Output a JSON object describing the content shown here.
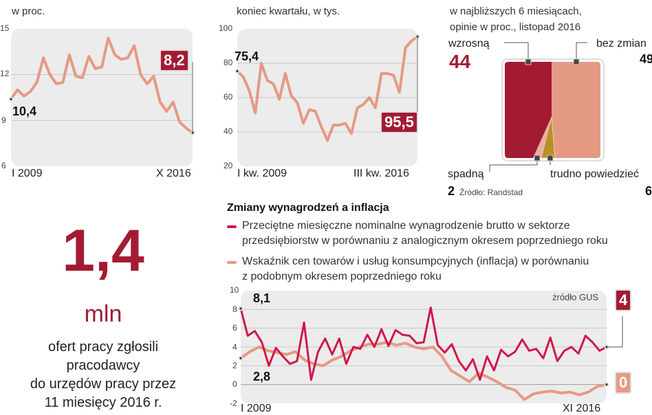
{
  "colors": {
    "dark_red": "#a31b33",
    "crimson": "#d0174a",
    "salmon": "#e59a84",
    "ochre": "#b8902a",
    "panel": "#ececec"
  },
  "unemployment": {
    "subtitle": "w proc.",
    "badge_end": "8,2",
    "label_start": "10,4"
  },
  "vacancies": {
    "subtitle": "koniec kwartału, w tys.",
    "badge_end": "95,5",
    "label_start": "75,4"
  },
  "wage_expectations": {
    "subtitle_lines": [
      "w najbliższych 6 miesiącach,",
      "opinie w proc., listopad 2016"
    ],
    "source": "Źródło: Randstad"
  },
  "offers": {
    "value": "1,4",
    "unit": "mln",
    "text_lines": [
      "ofert pracy zgłosili",
      "pracodawcy",
      "do urzędów pracy przez",
      "11 miesięcy 2016 r."
    ]
  },
  "wages_inflation": {
    "title": "Zmiany wynagrodzeń a inflacja",
    "legend": [
      "Przeciętne miesięczne  nominalne  wynagrodzenie brutto w sektorze przedsiębiorstw w porównaniu z analogicznym okresem poprzedniego  roku",
      "Wskaźnik cen towarów i usług konsumpcyjnych (inflacja) w porównaniu z podobnym okresem poprzedniego roku"
    ],
    "legend_lines": [
      [
        "Przeciętne miesięczne  nominalne  wynagrodzenie brutto w sektorze",
        "przedsiębiorstw w porównaniu z analogicznym okresem poprzedniego  roku"
      ],
      [
        "Wskaźnik cen towarów i usług konsumpcyjnych (inflacja) w porównaniu",
        "z podobnym okresem poprzedniego roku"
      ]
    ],
    "source": "źródło GUS",
    "label_wage_start": "8,1",
    "label_infl_start": "2,8",
    "badge_wage_end": "4",
    "badge_infl_end": "0"
  },
  "chart_data": [
    {
      "type": "line",
      "ylim": [
        6,
        15
      ],
      "yticks": [
        "15",
        "12",
        "9",
        "6"
      ],
      "xticks": [
        "I 2009",
        "X 2016"
      ],
      "grid": true,
      "values": [
        10.4,
        11.0,
        10.6,
        10.9,
        11.5,
        13.1,
        12.0,
        11.4,
        11.5,
        13.3,
        11.9,
        11.8,
        13.2,
        12.4,
        12.5,
        14.4,
        13.3,
        13.0,
        13.1,
        13.9,
        12.0,
        11.4,
        11.9,
        10.2,
        9.6,
        10.2,
        8.9,
        8.5,
        8.2
      ]
    },
    {
      "type": "line",
      "ylim": [
        20,
        100
      ],
      "yticks": [
        "100",
        "80",
        "60",
        "40",
        "20"
      ],
      "xticks": [
        "I kw. 2009",
        "III kw. 2016"
      ],
      "grid": true,
      "values": [
        75.4,
        72,
        64,
        51,
        80,
        70,
        68,
        59,
        74,
        61,
        57,
        45,
        53,
        52,
        43,
        35,
        44,
        44,
        45,
        39,
        54,
        56,
        60,
        54,
        74,
        74,
        73,
        63,
        89,
        93,
        95.5
      ]
    },
    {
      "type": "pie",
      "slices": [
        {
          "name": "wzrosną",
          "value": 44
        },
        {
          "name": "bez zmian",
          "value": 49
        },
        {
          "name": "trudno powiedzieć",
          "value": 6
        },
        {
          "name": "spadną",
          "value": 2
        }
      ]
    },
    {
      "type": "line",
      "title": "Zmiany wynagrodzeń a inflacja",
      "ylim": [
        -2,
        10
      ],
      "yticks": [
        "10",
        "8",
        "6",
        "4",
        "2",
        "0",
        "-2"
      ],
      "xticks": [
        "I 2009",
        "XI 2016"
      ],
      "grid": true,
      "series": [
        {
          "name": "Przeciętne miesięczne nominalne wynagrodzenie brutto",
          "values": [
            8.1,
            5.2,
            5.7,
            4.5,
            2.0,
            3.9,
            3.0,
            2.2,
            2.5,
            6.6,
            0.5,
            3.5,
            4.9,
            3.2,
            4.9,
            2.2,
            4.0,
            3.8,
            5.3,
            4.0,
            5.9,
            4.1,
            5.8,
            5.3,
            5.2,
            4.4,
            4.5,
            8.2,
            4.2,
            3.4,
            4.3,
            2.5,
            1.5,
            2.7,
            0.5,
            3.0,
            1.5,
            3.7,
            3.0,
            3.5,
            4.8,
            3.6,
            3.8,
            2.8,
            5.0,
            2.5,
            3.6,
            4.0,
            3.3,
            5.2,
            4.5,
            3.6,
            4.0
          ]
        },
        {
          "name": "Wskaźnik cen towarów i usług konsumpcyjnych (inflacja)",
          "values": [
            2.8,
            3.5,
            4.0,
            3.6,
            3.4,
            3.2,
            3.5,
            2.6,
            2.2,
            2.0,
            2.6,
            3.0,
            3.6,
            4.0,
            4.3,
            4.3,
            4.5,
            4.2,
            4.4,
            4.0,
            3.8,
            4.0,
            3.0,
            1.5,
            0.9,
            0.3,
            1.2,
            0.8,
            0.3,
            -0.3,
            -0.6,
            -1.6,
            -1.0,
            -0.8,
            -0.7,
            -0.9,
            -0.8,
            -1.1,
            -0.8,
            -0.2,
            0.0
          ]
        }
      ]
    }
  ]
}
